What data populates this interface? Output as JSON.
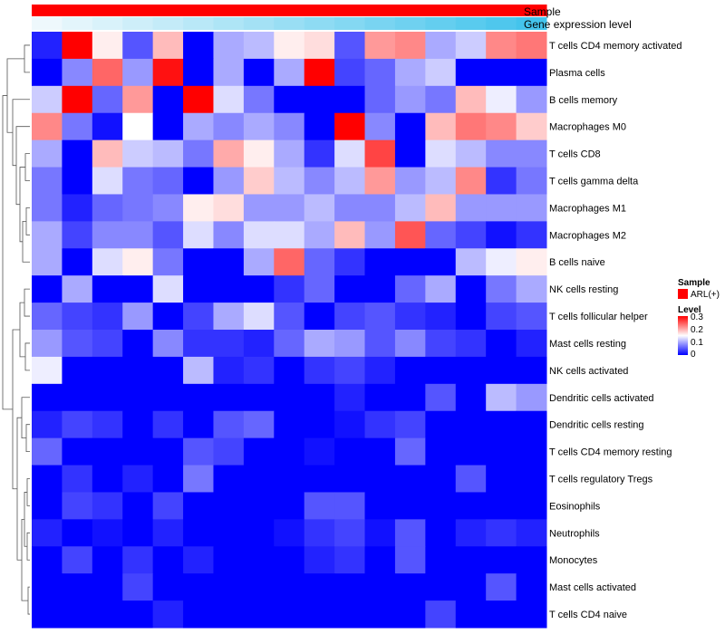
{
  "chart_data": {
    "type": "heatmap",
    "annotations": {
      "sample_label": "Sample",
      "sample_color": "#ff0000",
      "expression_label": "Gene expression level",
      "expression_low": "#eef8fc",
      "expression_high": "#44c4ec"
    },
    "legend": {
      "sample_title": "Sample",
      "sample_entries": [
        {
          "label": "ARL(+)",
          "color": "#ff0000"
        }
      ],
      "level_title": "Level",
      "level_ticks": [
        "0.3",
        "0.2",
        "0.1",
        "0"
      ],
      "scale_low": "#0000ff",
      "scale_mid": "#ffffff",
      "scale_high": "#ff0000"
    },
    "vmin": 0,
    "vmax": 0.3,
    "rows": [
      "T cells CD4 memory activated",
      "Plasma cells",
      "B cells memory",
      "Macrophages M0",
      "T cells CD8",
      "T cells gamma delta",
      "Macrophages M1",
      "Macrophages M2",
      "B cells naive",
      "NK cells resting",
      "T cells follicular helper",
      "Mast cells resting",
      "NK cells activated",
      "Dendritic cells activated",
      "Dendritic cells resting",
      "T cells CD4 memory resting",
      "T cells regulatory  Tregs",
      "Eosinophils",
      "Neutrophils",
      "Monocytes",
      "Mast cells activated",
      "T cells CD4 naive"
    ],
    "values": [
      [
        0.02,
        0.3,
        0.16,
        0.05,
        0.19,
        0.0,
        0.1,
        0.11,
        0.16,
        0.17,
        0.05,
        0.21,
        0.22,
        0.1,
        0.12,
        0.22,
        0.23
      ],
      [
        0.0,
        0.08,
        0.24,
        0.09,
        0.29,
        0.0,
        0.1,
        0.0,
        0.1,
        0.3,
        0.04,
        0.06,
        0.1,
        0.12,
        0.0,
        0.0,
        0.0
      ],
      [
        0.12,
        0.3,
        0.06,
        0.21,
        0.0,
        0.3,
        0.13,
        0.07,
        0.0,
        0.0,
        0.0,
        0.06,
        0.09,
        0.07,
        0.19,
        0.14,
        0.09
      ],
      [
        0.22,
        0.07,
        0.01,
        0.15,
        0.0,
        0.1,
        0.08,
        0.1,
        0.08,
        0.0,
        0.3,
        0.08,
        0.0,
        0.19,
        0.23,
        0.22,
        0.18
      ],
      [
        0.1,
        0.0,
        0.19,
        0.12,
        0.11,
        0.07,
        0.2,
        0.16,
        0.1,
        0.03,
        0.13,
        0.26,
        0.0,
        0.13,
        0.11,
        0.08,
        0.08
      ],
      [
        0.07,
        0.0,
        0.13,
        0.07,
        0.06,
        0.0,
        0.09,
        0.18,
        0.11,
        0.08,
        0.11,
        0.21,
        0.09,
        0.11,
        0.22,
        0.03,
        0.07
      ],
      [
        0.07,
        0.02,
        0.06,
        0.07,
        0.08,
        0.16,
        0.17,
        0.09,
        0.09,
        0.11,
        0.08,
        0.08,
        0.11,
        0.19,
        0.09,
        0.09,
        0.09
      ],
      [
        0.1,
        0.04,
        0.08,
        0.08,
        0.05,
        0.13,
        0.08,
        0.13,
        0.13,
        0.1,
        0.19,
        0.09,
        0.25,
        0.06,
        0.04,
        0.01,
        0.03
      ],
      [
        0.1,
        0.0,
        0.13,
        0.16,
        0.07,
        0.0,
        0.0,
        0.1,
        0.24,
        0.06,
        0.03,
        0.0,
        0.0,
        0.0,
        0.11,
        0.14,
        0.16
      ],
      [
        0.0,
        0.1,
        0.0,
        0.0,
        0.13,
        0.0,
        0.0,
        0.0,
        0.03,
        0.06,
        0.0,
        0.0,
        0.06,
        0.1,
        0.0,
        0.07,
        0.1
      ],
      [
        0.06,
        0.04,
        0.03,
        0.09,
        0.0,
        0.04,
        0.1,
        0.13,
        0.05,
        0.0,
        0.04,
        0.05,
        0.03,
        0.02,
        0.0,
        0.04,
        0.05
      ],
      [
        0.09,
        0.05,
        0.04,
        0.0,
        0.08,
        0.03,
        0.03,
        0.02,
        0.06,
        0.1,
        0.09,
        0.05,
        0.08,
        0.04,
        0.03,
        0.0,
        0.02
      ],
      [
        0.14,
        0.0,
        0.0,
        0.0,
        0.0,
        0.11,
        0.02,
        0.03,
        0.0,
        0.03,
        0.04,
        0.02,
        0.0,
        0.0,
        0.0,
        0.0,
        0.0
      ],
      [
        0.0,
        0.0,
        0.0,
        0.0,
        0.0,
        0.0,
        0.0,
        0.0,
        0.0,
        0.0,
        0.02,
        0.0,
        0.0,
        0.05,
        0.0,
        0.11,
        0.09
      ],
      [
        0.02,
        0.04,
        0.03,
        0.0,
        0.03,
        0.0,
        0.05,
        0.06,
        0.0,
        0.0,
        0.01,
        0.03,
        0.04,
        0.0,
        0.0,
        0.0,
        0.0
      ],
      [
        0.06,
        0.0,
        0.0,
        0.0,
        0.0,
        0.05,
        0.04,
        0.0,
        0.0,
        0.01,
        0.0,
        0.0,
        0.06,
        0.0,
        0.0,
        0.0,
        0.0
      ],
      [
        0.0,
        0.03,
        0.0,
        0.02,
        0.0,
        0.07,
        0.0,
        0.0,
        0.0,
        0.0,
        0.0,
        0.0,
        0.0,
        0.0,
        0.05,
        0.0,
        0.0
      ],
      [
        0.0,
        0.04,
        0.03,
        0.0,
        0.04,
        0.0,
        0.0,
        0.0,
        0.0,
        0.05,
        0.05,
        0.0,
        0.0,
        0.0,
        0.0,
        0.0,
        0.0
      ],
      [
        0.02,
        0.0,
        0.01,
        0.0,
        0.02,
        0.0,
        0.0,
        0.0,
        0.01,
        0.03,
        0.04,
        0.01,
        0.05,
        0.0,
        0.02,
        0.03,
        0.02
      ],
      [
        0.0,
        0.04,
        0.0,
        0.03,
        0.0,
        0.02,
        0.0,
        0.0,
        0.0,
        0.02,
        0.03,
        0.0,
        0.05,
        0.0,
        0.0,
        0.0,
        0.0
      ],
      [
        0.0,
        0.0,
        0.0,
        0.04,
        0.0,
        0.0,
        0.0,
        0.0,
        0.0,
        0.0,
        0.0,
        0.0,
        0.0,
        0.0,
        0.0,
        0.05,
        0.0
      ],
      [
        0.0,
        0.0,
        0.0,
        0.0,
        0.02,
        0.0,
        0.0,
        0.0,
        0.0,
        0.0,
        0.0,
        0.0,
        0.0,
        0.04,
        0.0,
        0.0,
        0.0
      ]
    ]
  }
}
